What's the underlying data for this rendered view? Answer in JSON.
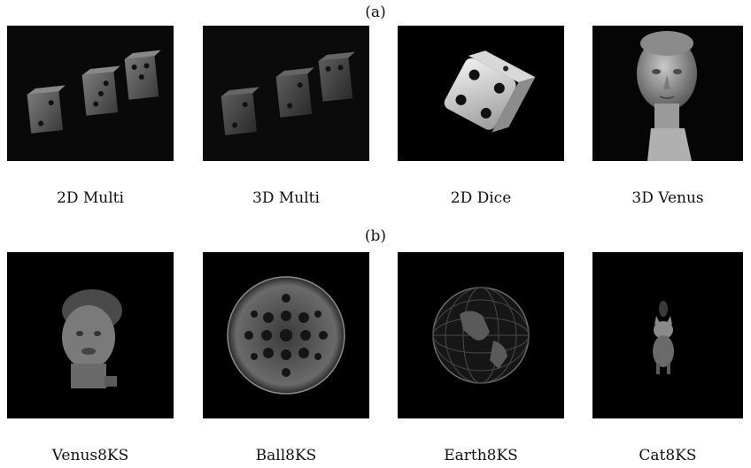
{
  "figure": {
    "row_a_label": "(a)",
    "row_b_label": "(b)",
    "row_a": [
      {
        "caption": "2D Multi"
      },
      {
        "caption": "3D Multi"
      },
      {
        "caption": "2D Dice"
      },
      {
        "caption": "3D Venus"
      }
    ],
    "row_b": [
      {
        "caption": "Venus8KS"
      },
      {
        "caption": "Ball8KS"
      },
      {
        "caption": "Earth8KS"
      },
      {
        "caption": "Cat8KS"
      }
    ]
  }
}
